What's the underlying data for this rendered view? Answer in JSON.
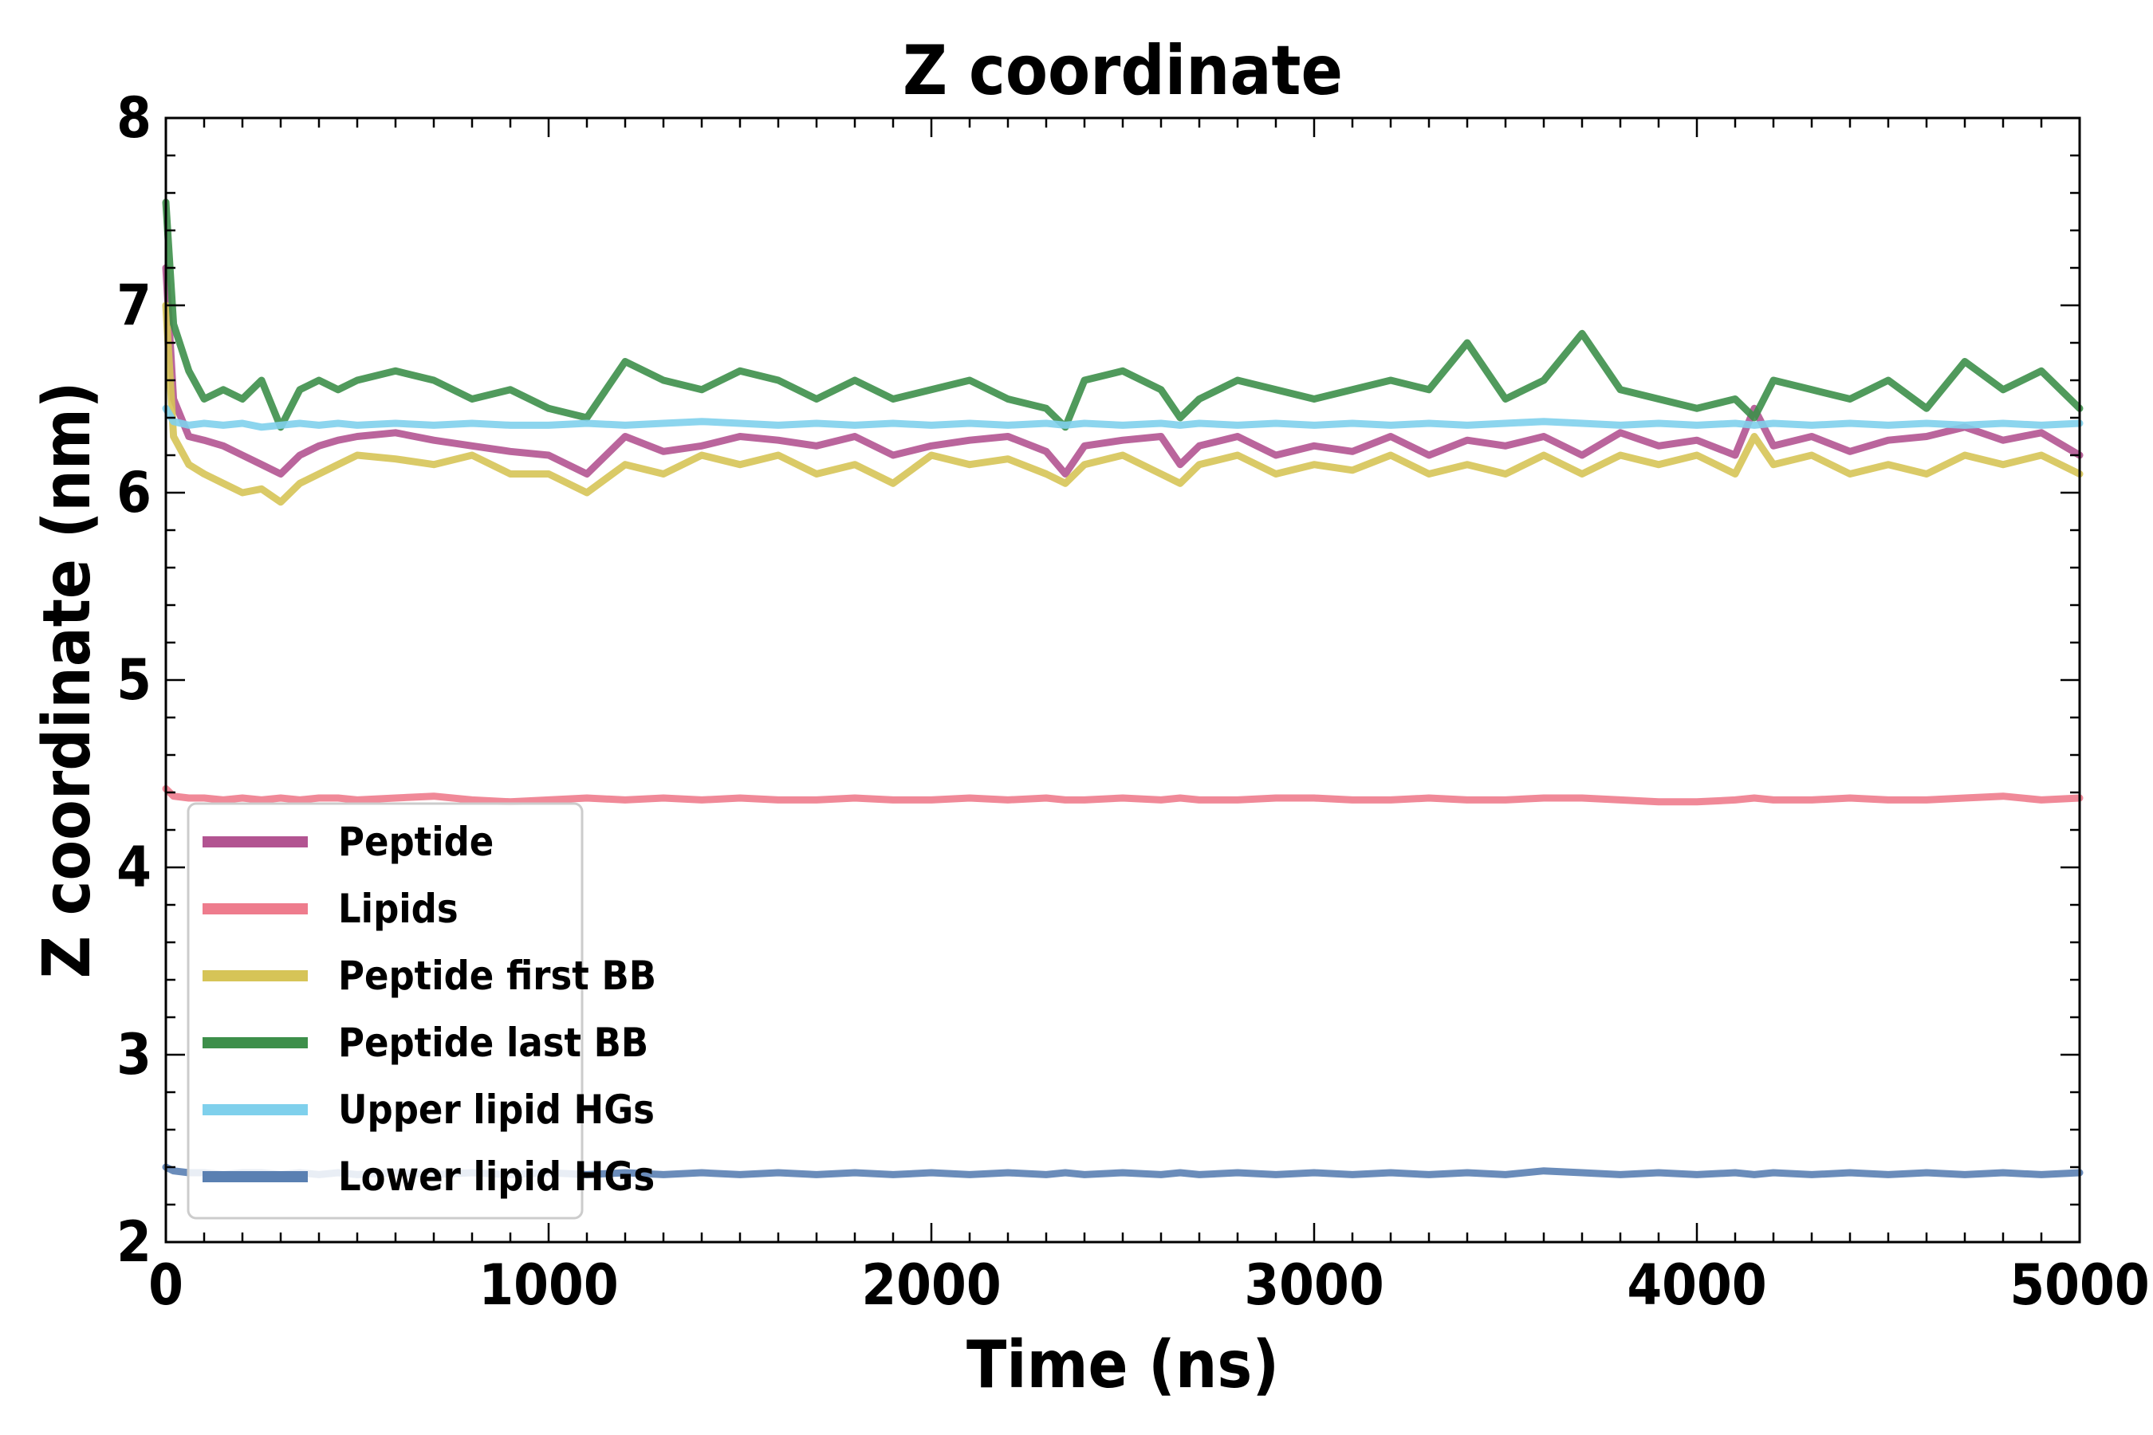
{
  "chart_data": {
    "type": "line",
    "title": "Z coordinate",
    "xlabel": "Time (ns)",
    "ylabel": "Z coordinate (nm)",
    "xlim": [
      0,
      5000
    ],
    "ylim": [
      2,
      8
    ],
    "xticks": [
      "0",
      "1000",
      "2000",
      "3000",
      "4000",
      "5000"
    ],
    "yticks": [
      "2",
      "3",
      "4",
      "5",
      "6",
      "7",
      "8"
    ],
    "grid": false,
    "legend_position": "lower-left",
    "x": [
      0,
      20,
      60,
      100,
      150,
      200,
      250,
      300,
      350,
      400,
      450,
      500,
      600,
      700,
      800,
      900,
      1000,
      1100,
      1200,
      1300,
      1400,
      1500,
      1600,
      1700,
      1800,
      1900,
      2000,
      2100,
      2200,
      2300,
      2350,
      2400,
      2500,
      2600,
      2650,
      2700,
      2800,
      2900,
      3000,
      3100,
      3200,
      3300,
      3400,
      3500,
      3600,
      3700,
      3800,
      3900,
      4000,
      4100,
      4150,
      4200,
      4300,
      4400,
      4500,
      4600,
      4700,
      4800,
      4900,
      5000
    ],
    "series": [
      {
        "name": "Peptide",
        "color": "#b25491",
        "values": [
          7.2,
          6.5,
          6.3,
          6.28,
          6.25,
          6.2,
          6.15,
          6.1,
          6.2,
          6.25,
          6.28,
          6.3,
          6.32,
          6.28,
          6.25,
          6.22,
          6.2,
          6.1,
          6.3,
          6.22,
          6.25,
          6.3,
          6.28,
          6.25,
          6.3,
          6.2,
          6.25,
          6.28,
          6.3,
          6.22,
          6.1,
          6.25,
          6.28,
          6.3,
          6.15,
          6.25,
          6.3,
          6.2,
          6.25,
          6.22,
          6.3,
          6.2,
          6.28,
          6.25,
          6.3,
          6.2,
          6.32,
          6.25,
          6.28,
          6.2,
          6.45,
          6.25,
          6.3,
          6.22,
          6.28,
          6.3,
          6.35,
          6.28,
          6.32,
          6.2
        ]
      },
      {
        "name": "Lipids",
        "color": "#ee7c8d",
        "values": [
          4.42,
          4.38,
          4.37,
          4.37,
          4.36,
          4.37,
          4.36,
          4.37,
          4.36,
          4.37,
          4.37,
          4.36,
          4.37,
          4.38,
          4.36,
          4.35,
          4.36,
          4.37,
          4.36,
          4.37,
          4.36,
          4.37,
          4.36,
          4.36,
          4.37,
          4.36,
          4.36,
          4.37,
          4.36,
          4.37,
          4.36,
          4.36,
          4.37,
          4.36,
          4.37,
          4.36,
          4.36,
          4.37,
          4.37,
          4.36,
          4.36,
          4.37,
          4.36,
          4.36,
          4.37,
          4.37,
          4.36,
          4.35,
          4.35,
          4.36,
          4.37,
          4.36,
          4.36,
          4.37,
          4.36,
          4.36,
          4.37,
          4.38,
          4.36,
          4.37
        ]
      },
      {
        "name": "Peptide first BB",
        "color": "#d6c457",
        "values": [
          7.0,
          6.3,
          6.15,
          6.1,
          6.05,
          6.0,
          6.02,
          5.95,
          6.05,
          6.1,
          6.15,
          6.2,
          6.18,
          6.15,
          6.2,
          6.1,
          6.1,
          6.0,
          6.15,
          6.1,
          6.2,
          6.15,
          6.2,
          6.1,
          6.15,
          6.05,
          6.2,
          6.15,
          6.18,
          6.1,
          6.05,
          6.15,
          6.2,
          6.1,
          6.05,
          6.15,
          6.2,
          6.1,
          6.15,
          6.12,
          6.2,
          6.1,
          6.15,
          6.1,
          6.2,
          6.1,
          6.2,
          6.15,
          6.2,
          6.1,
          6.3,
          6.15,
          6.2,
          6.1,
          6.15,
          6.1,
          6.2,
          6.15,
          6.2,
          6.1
        ]
      },
      {
        "name": "Peptide last BB",
        "color": "#3d8f4a",
        "values": [
          7.55,
          6.9,
          6.65,
          6.5,
          6.55,
          6.5,
          6.6,
          6.35,
          6.55,
          6.6,
          6.55,
          6.6,
          6.65,
          6.6,
          6.5,
          6.55,
          6.45,
          6.4,
          6.7,
          6.6,
          6.55,
          6.65,
          6.6,
          6.5,
          6.6,
          6.5,
          6.55,
          6.6,
          6.5,
          6.45,
          6.35,
          6.6,
          6.65,
          6.55,
          6.4,
          6.5,
          6.6,
          6.55,
          6.5,
          6.55,
          6.6,
          6.55,
          6.8,
          6.5,
          6.6,
          6.85,
          6.55,
          6.5,
          6.45,
          6.5,
          6.4,
          6.6,
          6.55,
          6.5,
          6.6,
          6.45,
          6.7,
          6.55,
          6.65,
          6.45
        ]
      },
      {
        "name": "Upper lipid HGs",
        "color": "#7fd0ec",
        "values": [
          6.45,
          6.38,
          6.36,
          6.37,
          6.36,
          6.37,
          6.35,
          6.36,
          6.37,
          6.36,
          6.37,
          6.36,
          6.37,
          6.36,
          6.37,
          6.36,
          6.36,
          6.37,
          6.36,
          6.37,
          6.38,
          6.37,
          6.36,
          6.37,
          6.36,
          6.37,
          6.36,
          6.37,
          6.36,
          6.37,
          6.36,
          6.37,
          6.36,
          6.37,
          6.36,
          6.37,
          6.36,
          6.37,
          6.36,
          6.37,
          6.36,
          6.37,
          6.36,
          6.37,
          6.38,
          6.37,
          6.36,
          6.37,
          6.36,
          6.37,
          6.36,
          6.37,
          6.36,
          6.37,
          6.36,
          6.37,
          6.36,
          6.37,
          6.36,
          6.37
        ]
      },
      {
        "name": "Lower lipid HGs",
        "color": "#5a80b2",
        "values": [
          2.4,
          2.38,
          2.37,
          2.37,
          2.36,
          2.37,
          2.37,
          2.36,
          2.37,
          2.36,
          2.37,
          2.36,
          2.37,
          2.36,
          2.37,
          2.36,
          2.37,
          2.36,
          2.37,
          2.36,
          2.37,
          2.36,
          2.37,
          2.36,
          2.37,
          2.36,
          2.37,
          2.36,
          2.37,
          2.36,
          2.37,
          2.36,
          2.37,
          2.36,
          2.37,
          2.36,
          2.37,
          2.36,
          2.37,
          2.36,
          2.37,
          2.36,
          2.37,
          2.36,
          2.38,
          2.37,
          2.36,
          2.37,
          2.36,
          2.37,
          2.36,
          2.37,
          2.36,
          2.37,
          2.36,
          2.37,
          2.36,
          2.37,
          2.36,
          2.37
        ]
      }
    ]
  }
}
